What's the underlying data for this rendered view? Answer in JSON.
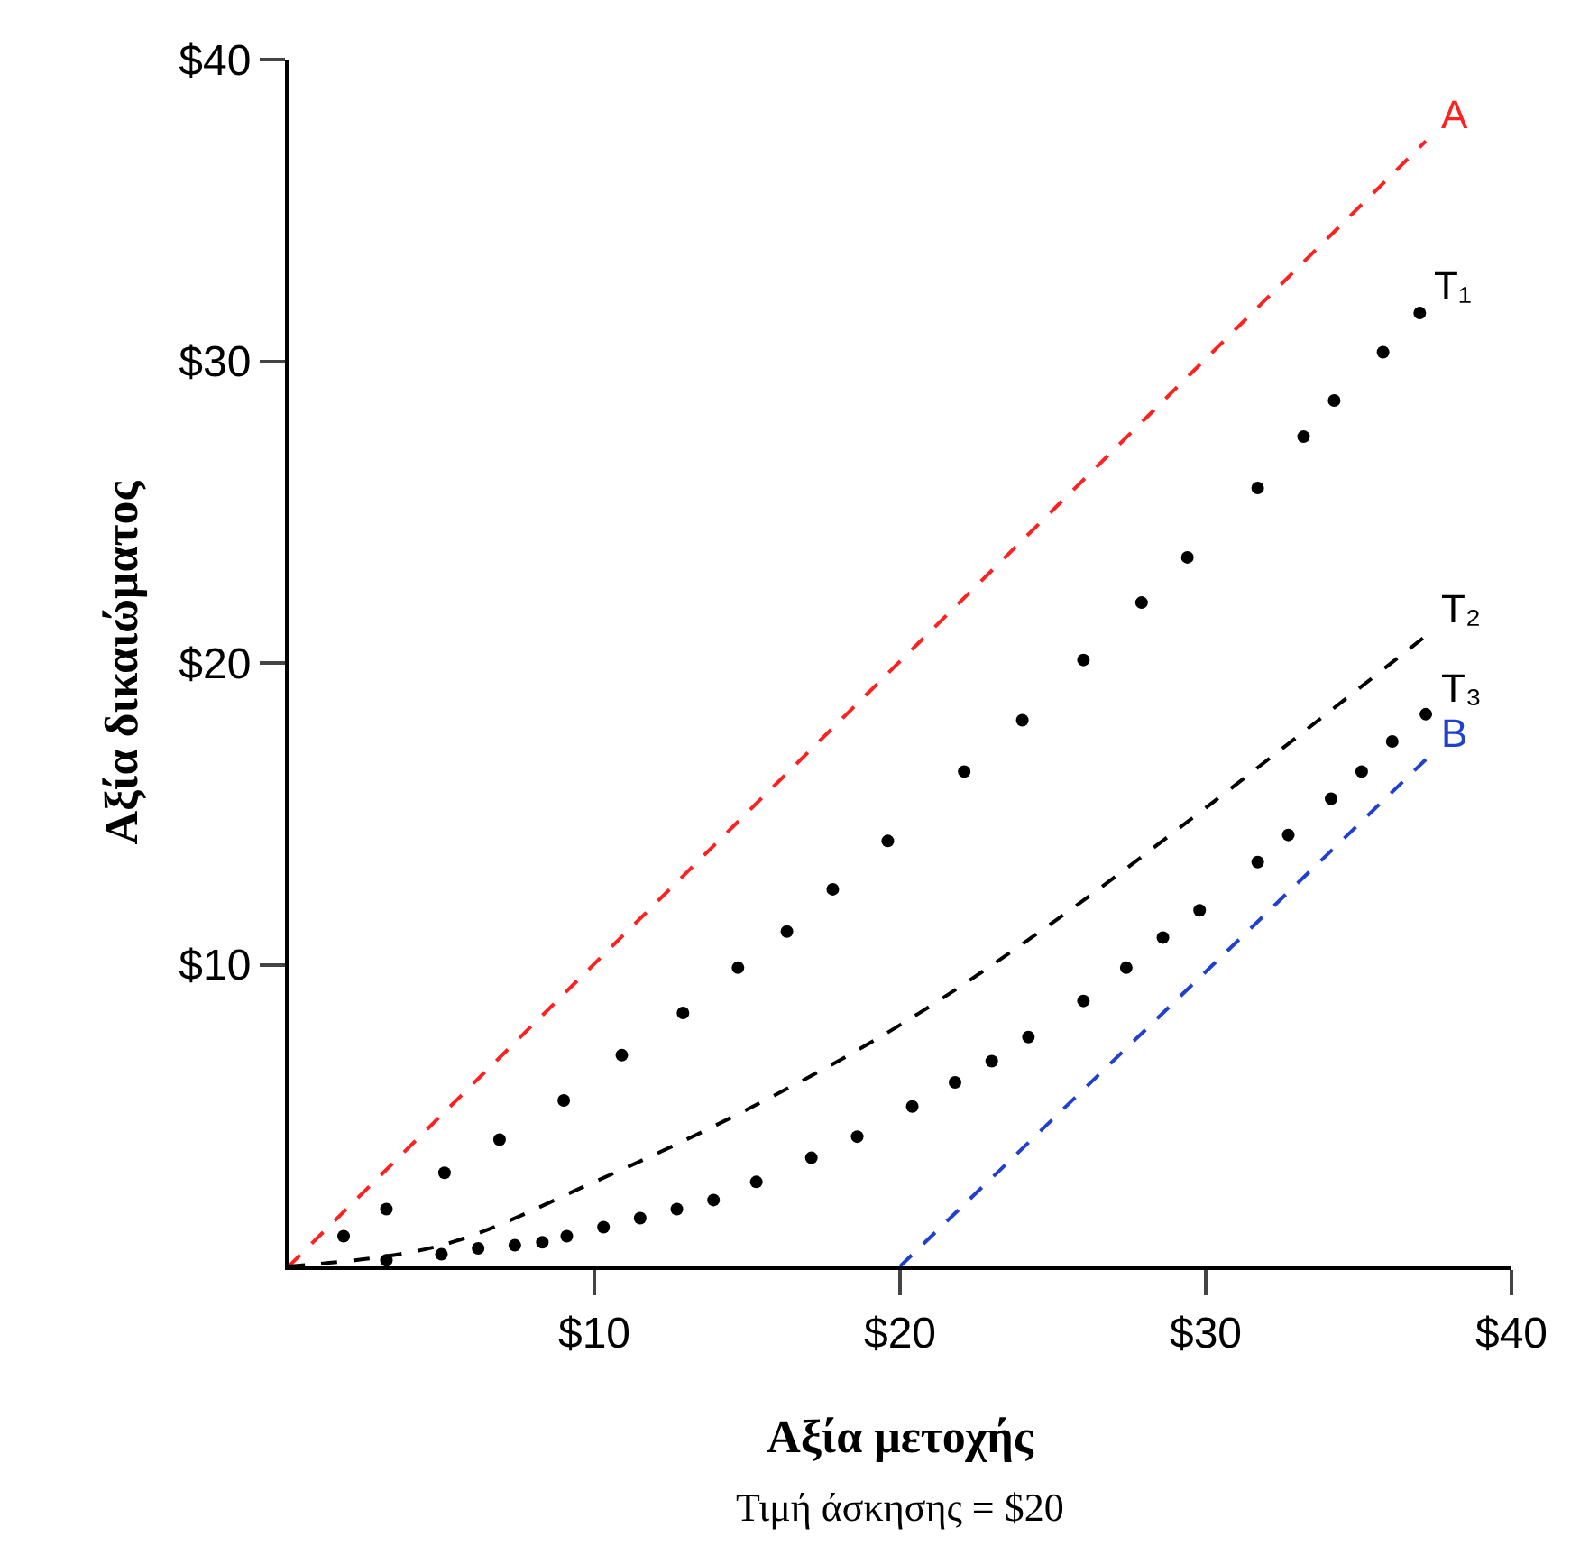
{
  "chart_data": {
    "type": "line",
    "xlabel": "Αξία μετοχής",
    "ylabel": "Αξία δικαιώματος",
    "xlim": [
      0,
      40
    ],
    "ylim": [
      0,
      40
    ],
    "xticks": [
      {
        "value": 10,
        "label": "$10"
      },
      {
        "value": 20,
        "label": "$20"
      },
      {
        "value": 30,
        "label": "$30"
      },
      {
        "value": 40,
        "label": "$40"
      }
    ],
    "yticks": [
      {
        "value": 10,
        "label": "$10"
      },
      {
        "value": 20,
        "label": "$20"
      },
      {
        "value": 30,
        "label": "$30"
      },
      {
        "value": 40,
        "label": "$40"
      }
    ],
    "legend": false,
    "annotations": [
      "Τιμή άσκησης = $20"
    ],
    "series": [
      {
        "name": "A",
        "type": "line",
        "line_style": "dashed",
        "color": "#ff2020",
        "x": [
          0,
          37.2
        ],
        "values": [
          0,
          37.3
        ]
      },
      {
        "name": "T₁",
        "type": "scatter",
        "marker": "circle",
        "color": "#000000",
        "x": [
          1.8,
          3.2,
          5.1,
          6.9,
          9,
          10.9,
          12.9,
          14.7,
          16.3,
          17.8,
          19.6,
          22.1,
          24,
          26,
          27.9,
          29.4,
          31.7,
          33.2,
          34.2,
          35.8,
          37
        ],
        "values": [
          1,
          1.9,
          3.1,
          4.2,
          5.5,
          7,
          8.4,
          9.9,
          11.1,
          12.5,
          14.1,
          16.4,
          18.1,
          20.1,
          22,
          23.5,
          25.8,
          27.5,
          28.7,
          30.3,
          31.6
        ]
      },
      {
        "name": "T₂",
        "type": "line",
        "line_style": "dashed",
        "color": "#000000",
        "x": [
          0,
          5,
          10,
          15,
          20,
          25,
          30,
          37.2
        ],
        "values": [
          0,
          0.7,
          2.8,
          5.2,
          8,
          11.4,
          15.2,
          20.9
        ]
      },
      {
        "name": "T₃",
        "type": "scatter",
        "marker": "circle",
        "color": "#000000",
        "x": [
          3.2,
          5,
          6.2,
          7.4,
          8.3,
          9.1,
          10.3,
          11.5,
          12.7,
          13.9,
          15.3,
          17.1,
          18.6,
          20.4,
          21.8,
          23,
          24.2,
          26,
          27.4,
          28.6,
          29.8,
          31.7,
          32.7,
          34.1,
          35.1,
          36.1,
          37.2
        ],
        "values": [
          0.2,
          0.4,
          0.6,
          0.7,
          0.8,
          1,
          1.3,
          1.6,
          1.9,
          2.2,
          2.8,
          3.6,
          4.3,
          5.3,
          6.1,
          6.8,
          7.6,
          8.8,
          9.9,
          10.9,
          11.8,
          13.4,
          14.3,
          15.5,
          16.4,
          17.4,
          18.3
        ]
      },
      {
        "name": "B",
        "type": "line",
        "line_style": "dashed",
        "color": "#2040d0",
        "x": [
          20,
          37.2
        ],
        "values": [
          0,
          16.8
        ]
      }
    ]
  }
}
